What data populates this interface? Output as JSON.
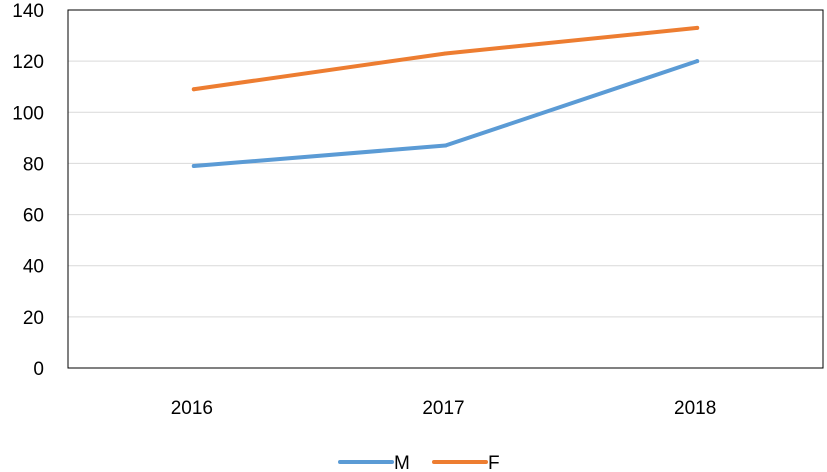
{
  "chart_data": {
    "type": "line",
    "categories": [
      "2016",
      "2017",
      "2018"
    ],
    "series": [
      {
        "name": "M",
        "values": [
          79,
          87,
          120
        ],
        "color": "#5B9BD5"
      },
      {
        "name": "F",
        "values": [
          109,
          123,
          133
        ],
        "color": "#ED7D31"
      }
    ],
    "y_ticks": [
      "0",
      "20",
      "40",
      "60",
      "80",
      "100",
      "120",
      "140"
    ],
    "ylim": [
      0,
      140
    ],
    "title": "",
    "xlabel": "",
    "ylabel": "",
    "grid": true,
    "legend_position": "bottom",
    "colors": {
      "gridline": "#D9D9D9",
      "axis": "#000000",
      "frame": "#000000"
    }
  }
}
